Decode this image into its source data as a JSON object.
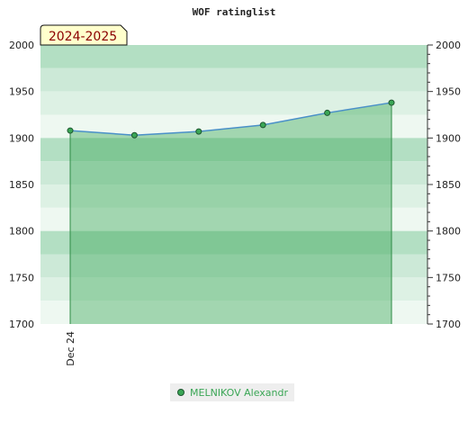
{
  "chart_data": {
    "type": "area",
    "title": "WOF ratinglist",
    "season_label": "2024-2025",
    "xlabel": "",
    "ylabel": "",
    "ylim": [
      1700,
      2000
    ],
    "yticks": [
      1700,
      1750,
      1800,
      1850,
      1900,
      1950,
      2000
    ],
    "x_tick_labels": [
      "Dec 24"
    ],
    "grid": true,
    "legend_position": "bottom-center",
    "series": [
      {
        "name": "MELNIKOV Alexandr",
        "color": "#3aa655",
        "line_color": "#4a90c8",
        "values": [
          1908,
          1903,
          1907,
          1914,
          1927,
          1938
        ]
      }
    ]
  }
}
